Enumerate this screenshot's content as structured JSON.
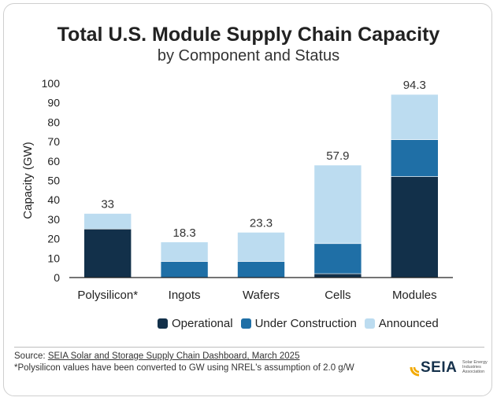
{
  "chart_data": {
    "type": "bar",
    "stacked": true,
    "title": "Total U.S. Module Supply Chain Capacity",
    "subtitle": "by Component and Status",
    "ylabel": "Capacity (GW)",
    "xlabel": "",
    "ylim": [
      0,
      100
    ],
    "yticks": [
      0,
      10,
      20,
      30,
      40,
      50,
      60,
      70,
      80,
      90,
      100
    ],
    "categories": [
      "Polysilicon*",
      "Ingots",
      "Wafers",
      "Cells",
      "Modules"
    ],
    "series": [
      {
        "name": "Operational",
        "color": "#12304a",
        "values": [
          25,
          0,
          0,
          2,
          52
        ]
      },
      {
        "name": "Under Construction",
        "color": "#1f6fa6",
        "values": [
          0,
          8.3,
          8.3,
          15.5,
          19
        ]
      },
      {
        "name": "Announced",
        "color": "#bcdcf0",
        "values": [
          8,
          10,
          15,
          40.4,
          23.3
        ]
      }
    ],
    "totals": [
      "33",
      "18.3",
      "23.3",
      "57.9",
      "94.3"
    ],
    "legend_position": "bottom"
  },
  "legend": {
    "items": [
      {
        "label": "Operational",
        "color": "#12304a"
      },
      {
        "label": "Under Construction",
        "color": "#1f6fa6"
      },
      {
        "label": "Announced",
        "color": "#bcdcf0"
      }
    ]
  },
  "footer": {
    "source_prefix": "Source: ",
    "source_link": "SEIA Solar and Storage Supply Chain Dashboard, March 2025",
    "note": "*Polysilicon values have been converted to GW using NREL's assumption of 2.0 g/W"
  },
  "logo": {
    "word": "SEIA",
    "tagline": "Solar Energy Industries Association"
  }
}
